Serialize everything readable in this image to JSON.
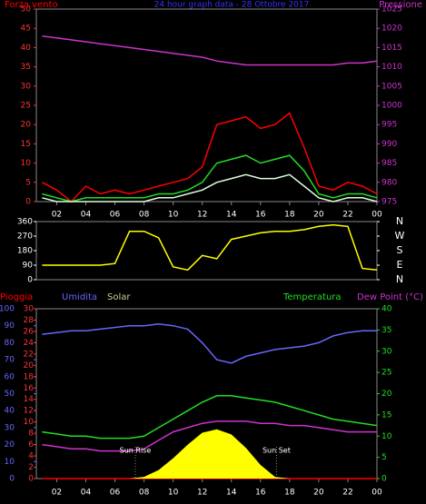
{
  "chart_data": [
    {
      "type": "line",
      "title": "24 hour graph data - 28 Ottobre 2017",
      "title_color": "#3333ff",
      "x": [
        1,
        2,
        3,
        4,
        5,
        6,
        7,
        8,
        9,
        10,
        11,
        12,
        13,
        14,
        15,
        16,
        17,
        18,
        19,
        20,
        21,
        22,
        23,
        24
      ],
      "xlim": [
        0.6,
        24
      ],
      "xticks": [
        {
          "value": 2,
          "label": "02"
        },
        {
          "value": 4,
          "label": "04"
        },
        {
          "value": 6,
          "label": "06"
        },
        {
          "value": 8,
          "label": "08"
        },
        10,
        12,
        14,
        16,
        18,
        20,
        22,
        {
          "value": 24,
          "label": "00"
        }
      ],
      "ylim": [
        0,
        50
      ],
      "yticks": [
        0,
        5,
        10,
        15,
        20,
        25,
        30,
        35,
        40,
        45,
        50
      ],
      "ytick_color": "#ff3333",
      "y2lim": [
        975,
        1025
      ],
      "y2ticks": [
        975,
        980,
        985,
        990,
        995,
        1000,
        1005,
        1010,
        1015,
        1020,
        1025
      ],
      "y2tick_color": "#cc33cc",
      "series": [
        {
          "name": "Forza vento",
          "color": "#ff0000",
          "values": [
            5,
            3,
            0,
            4,
            2,
            3,
            2,
            3,
            4,
            5,
            6,
            9,
            20,
            21,
            22,
            19,
            20,
            23,
            14,
            4,
            3,
            5,
            4,
            2
          ]
        },
        {
          "color": "#22dd22",
          "values": [
            2,
            1,
            0,
            1,
            1,
            1,
            1,
            1,
            2,
            2,
            3,
            5,
            10,
            11,
            12,
            10,
            11,
            12,
            8,
            2,
            1,
            2,
            2,
            1
          ]
        },
        {
          "color": "#ddffdd",
          "values": [
            1,
            0,
            0,
            0,
            0,
            0,
            0,
            0,
            1,
            1,
            2,
            3,
            5,
            6,
            7,
            6,
            6,
            7,
            4,
            1,
            0,
            1,
            1,
            0
          ]
        },
        {
          "name": "Pressione",
          "color": "#cc33cc",
          "axis": "y2",
          "values": [
            1018,
            1017.5,
            1017,
            1016.5,
            1016,
            1015.5,
            1015,
            1014.5,
            1014,
            1013.5,
            1013,
            1012.5,
            1011.5,
            1011,
            1010.5,
            1010.5,
            1010.5,
            1010.5,
            1010.5,
            1010.5,
            1010.5,
            1011,
            1011,
            1011.5
          ]
        }
      ]
    },
    {
      "type": "line",
      "x": [
        1,
        2,
        3,
        4,
        5,
        6,
        7,
        8,
        9,
        10,
        11,
        12,
        13,
        14,
        15,
        16,
        17,
        18,
        19,
        20,
        21,
        22,
        23,
        24
      ],
      "xlim": [
        0.6,
        24
      ],
      "ylim": [
        0,
        360
      ],
      "yticks": [
        0,
        90,
        180,
        270,
        360
      ],
      "ytick_color": "#ffffff",
      "y2lim": [
        0,
        360
      ],
      "y2ticks": [
        {
          "value": 0,
          "label": "N"
        },
        {
          "value": 90,
          "label": "E"
        },
        {
          "value": 180,
          "label": "S"
        },
        {
          "value": 270,
          "label": "W"
        },
        {
          "value": 360,
          "label": "N"
        }
      ],
      "y2tick_color": "#ffffff",
      "series": [
        {
          "color": "#ffff00",
          "values": [
            90,
            90,
            90,
            90,
            90,
            100,
            300,
            300,
            260,
            80,
            60,
            150,
            130,
            250,
            270,
            290,
            300,
            300,
            310,
            330,
            340,
            330,
            70,
            60
          ]
        }
      ]
    },
    {
      "type": "line",
      "x": [
        1,
        2,
        3,
        4,
        5,
        6,
        7,
        8,
        9,
        10,
        11,
        12,
        13,
        14,
        15,
        16,
        17,
        18,
        19,
        20,
        21,
        22,
        23,
        24
      ],
      "xlim": [
        0.6,
        24
      ],
      "xticks": [
        {
          "value": 2,
          "label": "02"
        },
        {
          "value": 4,
          "label": "04"
        },
        {
          "value": 6,
          "label": "06"
        },
        {
          "value": 8,
          "label": "08"
        },
        10,
        12,
        14,
        16,
        18,
        20,
        22,
        {
          "value": 24,
          "label": "00"
        }
      ],
      "ylim": [
        0,
        100
      ],
      "yticks": [
        0,
        10,
        20,
        30,
        40,
        50,
        60,
        70,
        80,
        90,
        100
      ],
      "ytick_color": "#6666ff",
      "y3lim": [
        0,
        30
      ],
      "y3ticks": [
        0,
        2,
        4,
        6,
        8,
        10,
        12,
        14,
        16,
        18,
        20,
        22,
        24,
        26,
        28,
        30
      ],
      "y3tick_color": "#ff3333",
      "y2lim": [
        0,
        40
      ],
      "y2ticks": [
        0,
        5,
        10,
        15,
        20,
        25,
        30,
        35,
        40
      ],
      "y2tick_color": "#22dd22",
      "annotations": [
        {
          "text": "Sun Rise",
          "x": 7.4
        },
        {
          "text": "Sun Set",
          "x": 17.1
        }
      ],
      "series": [
        {
          "name": "Pioggia",
          "color": "#ff0000",
          "axis": "y3",
          "values": [
            0,
            0,
            0,
            0,
            0,
            0,
            0,
            0,
            0,
            0,
            0,
            0,
            0,
            0,
            0,
            0,
            0,
            0,
            0,
            0,
            0,
            0,
            0,
            0
          ]
        },
        {
          "name": "Umidita",
          "color": "#6666ff",
          "values": [
            85,
            86,
            87,
            87,
            88,
            89,
            90,
            90,
            91,
            90,
            88,
            80,
            70,
            68,
            72,
            74,
            76,
            77,
            78,
            80,
            84,
            86,
            87,
            87
          ]
        },
        {
          "name": "Solar",
          "color": "#ffff00",
          "legend_color": "#cccc99",
          "fill": true,
          "values": [
            0,
            0,
            0,
            0,
            0,
            0,
            0,
            1,
            5,
            12,
            20,
            27,
            29,
            26,
            18,
            8,
            1,
            0,
            0,
            0,
            0,
            0,
            0,
            0
          ]
        },
        {
          "name": "Temperatura",
          "color": "#22dd22",
          "axis": "y2",
          "values": [
            11,
            10.5,
            10,
            10,
            9.5,
            9.5,
            9.5,
            10,
            12,
            14,
            16,
            18,
            19.5,
            19.5,
            19,
            18.5,
            18,
            17,
            16,
            15,
            14,
            13.5,
            13,
            12.5
          ]
        },
        {
          "name": "Dew Point (°C)",
          "color": "#cc33cc",
          "axis": "y2",
          "values": [
            8,
            7.5,
            7,
            7,
            6.5,
            6.5,
            6.5,
            7,
            9,
            11,
            12,
            13,
            13.5,
            13.5,
            13.5,
            13,
            13,
            12.5,
            12.5,
            12,
            11.5,
            11,
            11,
            11
          ]
        }
      ]
    }
  ]
}
